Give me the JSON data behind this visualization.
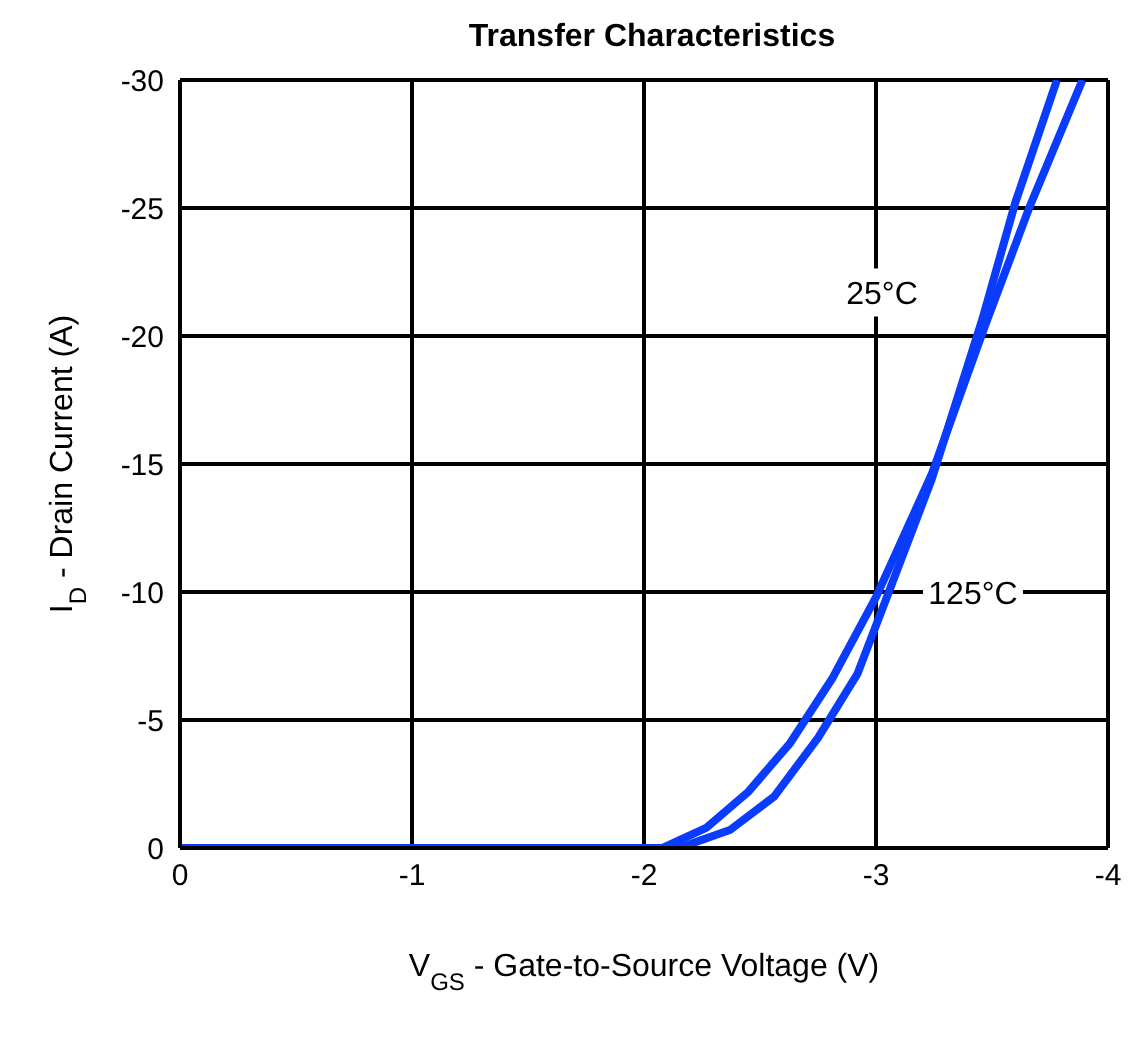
{
  "chart_data": {
    "type": "line",
    "title": "Transfer Characteristics",
    "xlabel": "V$_{GS}$ - Gate-to-Source Voltage (V)",
    "ylabel": "I$_{D}$ - Drain Current (A)",
    "xlim": [
      0,
      -4
    ],
    "xticks": [
      0,
      -1,
      -2,
      -3,
      -4
    ],
    "ylim": [
      0,
      -30
    ],
    "yticks": [
      0,
      -5,
      -10,
      -15,
      -20,
      -25,
      -30
    ],
    "grid": true,
    "marker": "none",
    "line_style": "solid",
    "series": [
      {
        "color": "#0a3cff",
        "x": [
          0,
          -0.5,
          -1,
          -1.5,
          -2.0,
          -2.15,
          -2.37,
          -2.56,
          -2.75,
          -2.92,
          -3.03,
          -3.24,
          -3.46,
          -3.6,
          -3.78
        ],
        "values": [
          0,
          0,
          0,
          0,
          0,
          0,
          -0.7,
          -2.0,
          -4.3,
          -6.8,
          -9.4,
          -14.4,
          -20.7,
          -25.2,
          -30
        ]
      },
      {
        "color": "#0a3cff",
        "x": [
          0,
          -0.5,
          -1,
          -1.5,
          -2.0,
          -2.08,
          -2.27,
          -2.45,
          -2.63,
          -2.81,
          -3.0,
          -3.24,
          -3.47,
          -3.66,
          -3.89
        ],
        "values": [
          0,
          0,
          0,
          0,
          0,
          0,
          -0.8,
          -2.2,
          -4.1,
          -6.6,
          -9.8,
          -14.6,
          -20.4,
          -25,
          -30
        ]
      }
    ],
    "annotations": [
      {
        "text": "25°C",
        "x": -3.5,
        "y": -21.7
      },
      {
        "text": "125°C",
        "x": -3.03,
        "y": -10
      }
    ]
  }
}
